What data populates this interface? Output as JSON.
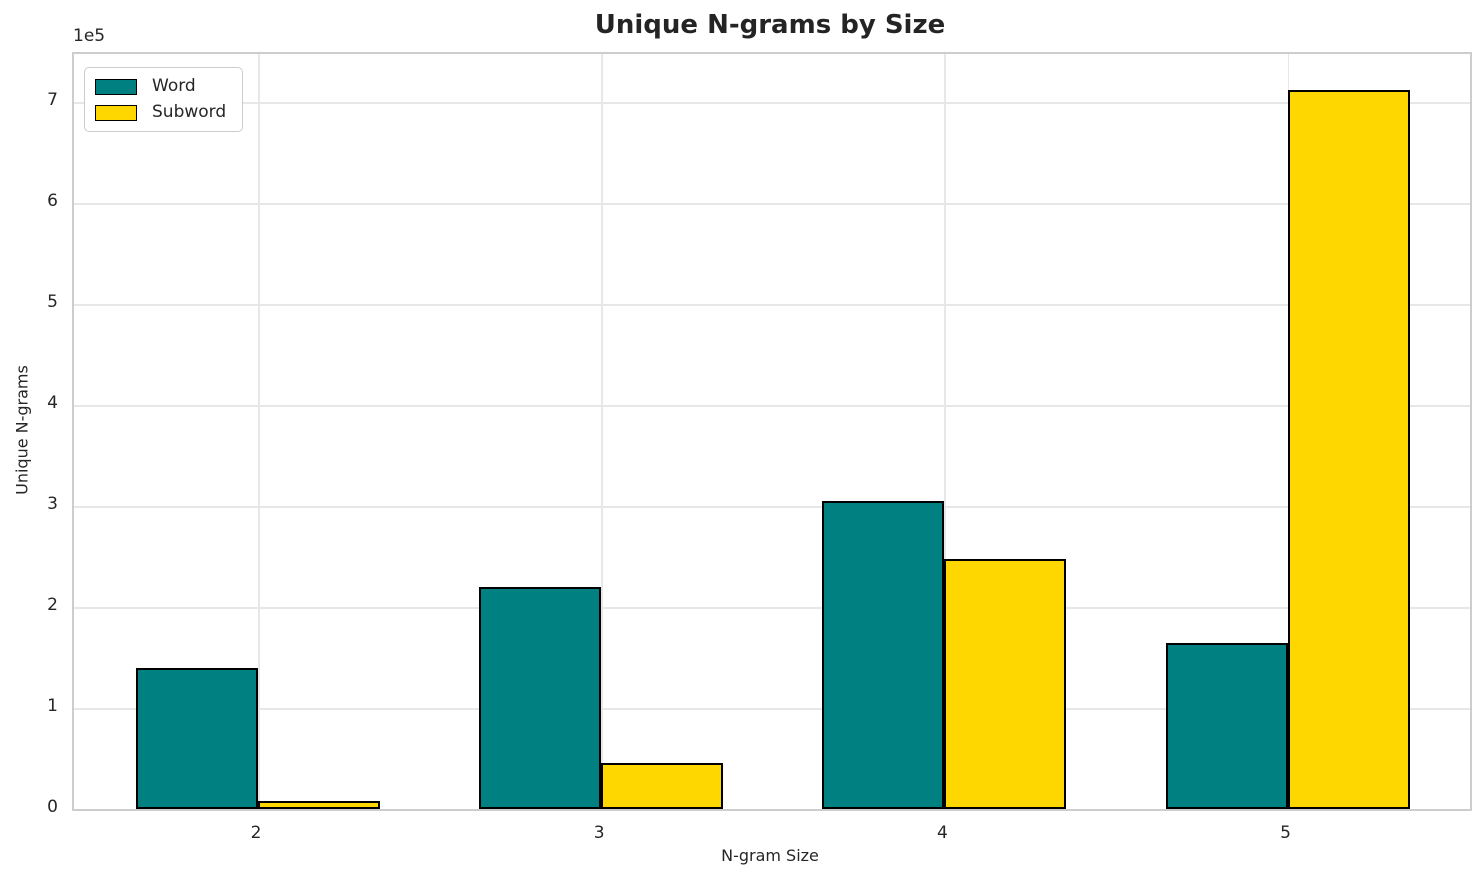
{
  "figure": {
    "title": "Unique N-grams by Size",
    "offset_text": "1e5"
  },
  "chart_data": {
    "type": "bar",
    "title": "Unique N-grams by Size",
    "xlabel": "N-gram Size",
    "ylabel": "Unique N-grams",
    "categories": [
      "2",
      "3",
      "4",
      "5"
    ],
    "series": [
      {
        "name": "Word",
        "color": "#008080",
        "values": [
          140000,
          220000,
          305000,
          164000
        ]
      },
      {
        "name": "Subword",
        "color": "#FFD700",
        "values": [
          7500,
          46000,
          248000,
          712000
        ]
      }
    ],
    "y_ticks": [
      0,
      100000,
      200000,
      300000,
      400000,
      500000,
      600000,
      700000
    ],
    "y_tick_labels": [
      "0",
      "1",
      "2",
      "3",
      "4",
      "5",
      "6",
      "7"
    ],
    "y_scale_multiplier": "1e5",
    "ylim": [
      0,
      748000
    ],
    "grid": true,
    "legend_position": "upper left",
    "bar_edge_color": "#000000",
    "grid_color": "#e7e7e7",
    "spine_color": "#cdcdcd"
  }
}
